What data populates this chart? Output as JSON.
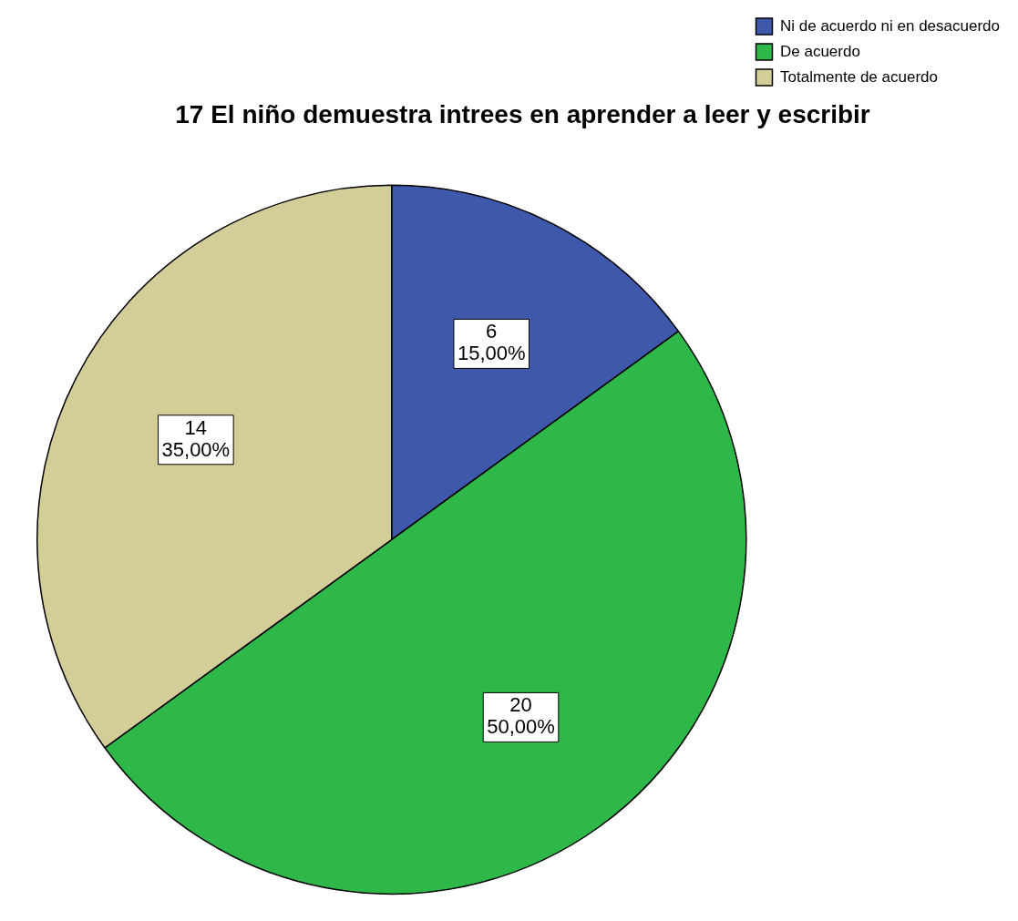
{
  "chart_data": {
    "type": "pie",
    "title": "17 El niño demuestra intrees en aprender a leer y escribir",
    "categories": [
      "Ni de acuerdo ni en desacuerdo",
      "De acuerdo",
      "Totalmente de acuerdo"
    ],
    "values": [
      6,
      20,
      14
    ],
    "colors": [
      "#3e58ac",
      "#2eb84a",
      "#d3ce97"
    ],
    "value_labels": [
      "6\n15,00%",
      "20\n50,00%",
      "14\n35,00%"
    ],
    "legend": "top right"
  }
}
